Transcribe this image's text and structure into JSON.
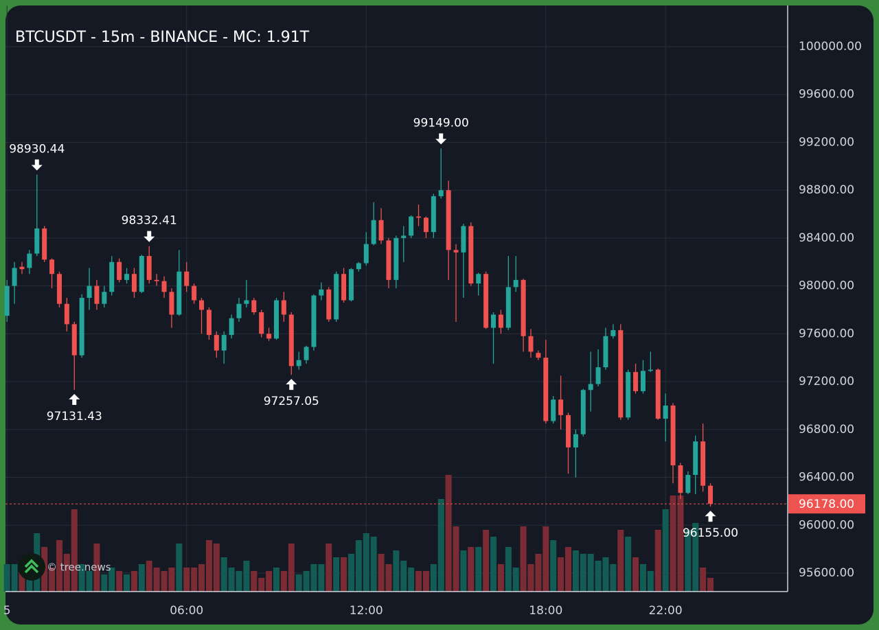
{
  "chart_data": {
    "type": "candlestick",
    "title": "BTCUSDT - 15m - BINANCE - MC: 1.91T",
    "watermark": "© tree.news",
    "up_color": "#26a69a",
    "down_color": "#ef5350",
    "volume_up_color": "#135c55",
    "volume_down_color": "#7a2b33",
    "grid": true,
    "x": [
      0,
      0.25,
      0.5,
      0.75,
      1,
      1.25,
      1.5,
      1.75,
      2,
      2.25,
      2.5,
      2.75,
      3,
      3.25,
      3.5,
      3.75,
      4,
      4.25,
      4.5,
      4.75,
      5,
      5.25,
      5.5,
      5.75,
      6,
      6.25,
      6.5,
      6.75,
      7,
      7.25,
      7.5,
      7.75,
      8,
      8.25,
      8.5,
      8.75,
      9,
      9.25,
      9.5,
      9.75,
      10,
      10.25,
      10.5,
      10.75,
      11,
      11.25,
      11.5,
      11.75,
      12,
      12.25,
      12.5,
      12.75,
      13,
      13.25,
      13.5,
      13.75,
      14,
      14.25,
      14.5,
      14.75,
      15,
      15.25,
      15.5,
      15.75,
      16,
      16.25,
      16.5,
      16.75,
      17,
      17.25,
      17.5,
      17.75,
      18,
      18.25,
      18.5,
      18.75,
      19,
      19.25,
      19.5,
      19.75,
      20,
      20.25,
      20.5,
      20.75,
      21,
      21.25,
      21.5,
      21.75,
      22,
      22.25,
      22.5,
      22.75,
      23,
      23.25,
      23.5
    ],
    "open": [
      97750,
      98000,
      98160,
      98150,
      98270,
      98480,
      98220,
      98100,
      97850,
      97680,
      97420,
      97900,
      98000,
      97850,
      97950,
      98200,
      98050,
      98100,
      97950,
      98250,
      98050,
      98040,
      97950,
      97760,
      98120,
      98000,
      97880,
      97800,
      97590,
      97460,
      97590,
      97730,
      97850,
      97880,
      97780,
      97600,
      97560,
      97880,
      97760,
      97330,
      97380,
      97490,
      97920,
      97970,
      97720,
      98100,
      97880,
      98140,
      98190,
      98350,
      98550,
      98380,
      98050,
      98400,
      98420,
      98580,
      98570,
      98450,
      98750,
      98800,
      98300,
      98280,
      98500,
      98020,
      98100,
      97650,
      97760,
      97650,
      97990,
      98050,
      97580,
      97440,
      97400,
      96870,
      97050,
      96920,
      96650,
      96760,
      97130,
      97180,
      97320,
      97580,
      97630,
      96900,
      97280,
      97120,
      97290,
      97300,
      96890,
      97000,
      96500,
      96270,
      96420,
      96700,
      96330
    ],
    "high": [
      98050,
      98200,
      98200,
      98300,
      98930.44,
      98500,
      98230,
      98120,
      97900,
      97700,
      97930,
      98150,
      98050,
      98000,
      98250,
      98230,
      98150,
      98150,
      98260,
      98332.41,
      98100,
      98080,
      97980,
      98300,
      98200,
      98020,
      97900,
      97820,
      97620,
      97620,
      97760,
      97900,
      98050,
      97900,
      97800,
      97650,
      97900,
      97950,
      97780,
      97450,
      97500,
      97930,
      98030,
      97990,
      98120,
      98150,
      98150,
      98200,
      98450,
      98700,
      98650,
      98400,
      98420,
      98500,
      98590,
      98680,
      98580,
      98770,
      99149,
      98880,
      98350,
      98520,
      98530,
      98110,
      98120,
      97780,
      97800,
      98250,
      98250,
      98060,
      97640,
      97460,
      97550,
      97080,
      97250,
      96940,
      96800,
      97140,
      97450,
      97470,
      97650,
      97680,
      97680,
      97300,
      97350,
      97380,
      97450,
      97310,
      97100,
      97020,
      96520,
      96450,
      96750,
      96850,
      96350
    ],
    "low": [
      97700,
      97850,
      98100,
      98100,
      98250,
      98200,
      97980,
      97820,
      97620,
      97131.43,
      97400,
      97800,
      97800,
      97820,
      97920,
      98030,
      98020,
      97900,
      97940,
      98020,
      98000,
      97900,
      97650,
      97750,
      97950,
      97850,
      97600,
      97550,
      97400,
      97350,
      97560,
      97700,
      97820,
      97760,
      97570,
      97540,
      97550,
      97700,
      97257.05,
      97300,
      97350,
      97460,
      97880,
      97700,
      97700,
      97860,
      97870,
      98120,
      98170,
      98340,
      98350,
      97980,
      97980,
      98200,
      98400,
      98500,
      98400,
      98400,
      98730,
      98050,
      97700,
      97900,
      98000,
      97920,
      97640,
      97350,
      97600,
      97630,
      97950,
      97450,
      97400,
      97380,
      96850,
      96850,
      96800,
      96430,
      96400,
      96740,
      96950,
      97160,
      97300,
      97560,
      96880,
      96880,
      97100,
      97100,
      97280,
      96880,
      96700,
      96350,
      96220,
      96260,
      96260,
      96280,
      96155
    ],
    "close": [
      98000,
      98150,
      98140,
      98270,
      98480,
      98220,
      98100,
      97850,
      97680,
      97420,
      97900,
      98000,
      97850,
      97950,
      98200,
      98050,
      98100,
      97950,
      98250,
      98050,
      98040,
      97950,
      97760,
      98120,
      98000,
      97880,
      97800,
      97590,
      97460,
      97590,
      97730,
      97850,
      97880,
      97780,
      97600,
      97560,
      97880,
      97760,
      97330,
      97380,
      97490,
      97920,
      97970,
      97720,
      98100,
      97880,
      98140,
      98190,
      98350,
      98550,
      98380,
      98050,
      98400,
      98420,
      98580,
      98570,
      98450,
      98750,
      98800,
      98300,
      98280,
      98500,
      98020,
      98100,
      97650,
      97760,
      97650,
      97990,
      98050,
      97580,
      97450,
      97400,
      96870,
      97050,
      96920,
      96650,
      96760,
      97130,
      97180,
      97320,
      97580,
      97630,
      96900,
      97280,
      97120,
      97290,
      97300,
      96890,
      97000,
      96500,
      96270,
      96420,
      96700,
      96330,
      96178
    ],
    "volume": [
      40,
      40,
      30,
      35,
      85,
      65,
      35,
      75,
      55,
      120,
      40,
      30,
      70,
      25,
      35,
      30,
      25,
      30,
      40,
      45,
      35,
      30,
      35,
      70,
      35,
      35,
      40,
      75,
      70,
      50,
      35,
      30,
      45,
      30,
      20,
      30,
      35,
      30,
      70,
      25,
      30,
      40,
      40,
      70,
      50,
      50,
      55,
      75,
      85,
      80,
      55,
      40,
      60,
      45,
      35,
      30,
      30,
      40,
      135,
      170,
      95,
      60,
      65,
      65,
      90,
      80,
      40,
      65,
      35,
      95,
      40,
      55,
      95,
      75,
      50,
      65,
      60,
      55,
      55,
      45,
      50,
      40,
      90,
      80,
      50,
      40,
      30,
      90,
      120,
      140,
      140,
      90,
      100,
      35,
      20
    ],
    "xlim": [
      -0.05,
      26.08
    ],
    "xticks": [
      {
        "value": 0,
        "label": "5"
      },
      {
        "value": 6,
        "label": "06:00"
      },
      {
        "value": 12,
        "label": "12:00"
      },
      {
        "value": 18,
        "label": "18:00"
      },
      {
        "value": 22,
        "label": "22:00"
      }
    ],
    "ylim": [
      95445,
      100344
    ],
    "yticks": [
      {
        "value": 95600,
        "label": "95600.00"
      },
      {
        "value": 96000,
        "label": "96000.00"
      },
      {
        "value": 96400,
        "label": "96400.00"
      },
      {
        "value": 96800,
        "label": "96800.00"
      },
      {
        "value": 97200,
        "label": "97200.00"
      },
      {
        "value": 97600,
        "label": "97600.00"
      },
      {
        "value": 98000,
        "label": "98000.00"
      },
      {
        "value": 98400,
        "label": "98400.00"
      },
      {
        "value": 98800,
        "label": "98800.00"
      },
      {
        "value": 99200,
        "label": "99200.00"
      },
      {
        "value": 99600,
        "label": "99600.00"
      },
      {
        "value": 100000,
        "label": "100000.00"
      }
    ],
    "last_price": {
      "value": 96178,
      "label": "96178.00"
    },
    "annotations": [
      {
        "x": 1,
        "value": 98930.44,
        "label": "98930.44",
        "side": "high"
      },
      {
        "x": 2.25,
        "value": 97131.43,
        "label": "97131.43",
        "side": "low"
      },
      {
        "x": 4.75,
        "value": 98332.41,
        "label": "98332.41",
        "side": "high"
      },
      {
        "x": 9.5,
        "value": 97257.05,
        "label": "97257.05",
        "side": "low"
      },
      {
        "x": 14.5,
        "value": 99149,
        "label": "99149.00",
        "side": "high"
      },
      {
        "x": 23.5,
        "value": 96155,
        "label": "96155.00",
        "side": "low"
      }
    ]
  }
}
